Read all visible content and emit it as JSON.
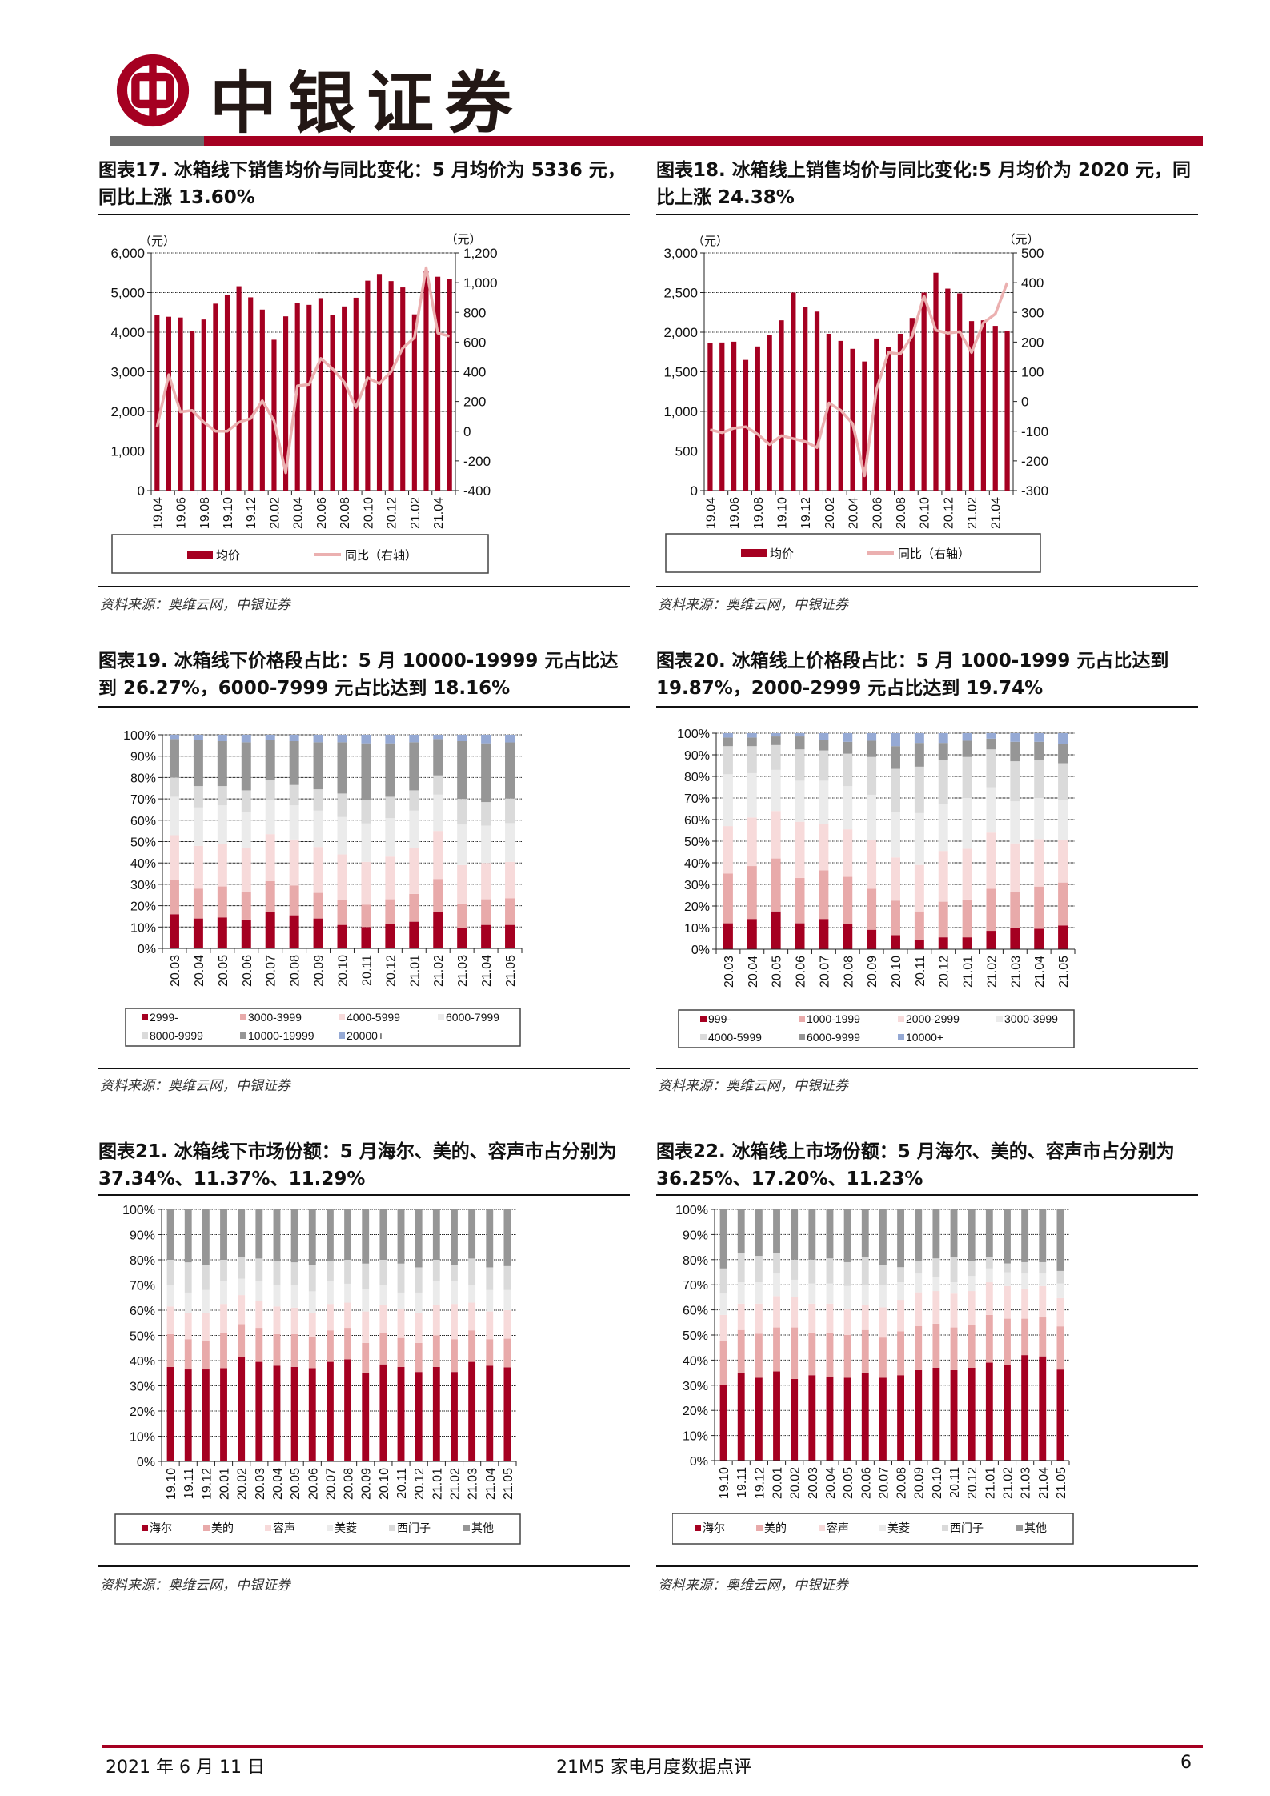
{
  "header": {
    "logo_text": "中银证券",
    "brand_color": "#A50021",
    "logo_icon": "bank-of-china-logo"
  },
  "sources": [
    "资料来源：奥维云网，中银证券",
    "资料来源：奥维云网，中银证券",
    "资料来源：奥维云网，中银证券",
    "资料来源：奥维云网，中银证券",
    "资料来源：奥维云网，中银证券",
    "资料来源：奥维云网，中银证券"
  ],
  "footer": {
    "date": "2021 年 6 月 11 日",
    "report_title": "21M5 家电月度数据点评",
    "page_number": "6"
  },
  "chart_data": [
    {
      "type": "bar+line",
      "title": "图表17. 冰箱线下销售均价与同比变化：5 月均价为 5336 元，同比上涨 13.60%",
      "y_unit_left": "（元）",
      "y_unit_right": "（元）",
      "categories": [
        "19.04",
        "19.05",
        "19.06",
        "19.07",
        "19.08",
        "19.09",
        "19.10",
        "19.11",
        "19.12",
        "20.01",
        "20.02",
        "20.03",
        "20.04",
        "20.05",
        "20.06",
        "20.07",
        "20.08",
        "20.09",
        "20.10",
        "20.11",
        "20.12",
        "21.01",
        "21.02",
        "21.03",
        "21.04",
        "21.05"
      ],
      "tick_labels": [
        "19.04",
        "19.06",
        "19.08",
        "19.10",
        "19.12",
        "20.02",
        "20.04",
        "20.06",
        "20.08",
        "20.10",
        "20.12",
        "21.02",
        "21.04"
      ],
      "ylim_left": [
        0,
        6000
      ],
      "yticks_left": [
        "0",
        "1,000",
        "2,000",
        "3,000",
        "4,000",
        "5,000",
        "6,000"
      ],
      "ylim_right": [
        -400,
        1200
      ],
      "yticks_right": [
        "-400",
        "-200",
        "0",
        "200",
        "400",
        "600",
        "800",
        "1,000",
        "1,200"
      ],
      "grid": true,
      "legend": "bottom",
      "series": [
        {
          "name": "均价",
          "kind": "bar",
          "axis": "left",
          "color": "#A50021",
          "values": [
            4430,
            4390,
            4370,
            4020,
            4320,
            4720,
            4950,
            5160,
            4880,
            4570,
            3810,
            4400,
            4740,
            4690,
            4860,
            4440,
            4650,
            4870,
            5300,
            5470,
            5290,
            5130,
            4450,
            5550,
            5400,
            5336
          ]
        },
        {
          "name": "同比（右轴）",
          "kind": "line",
          "axis": "right",
          "color": "#EBB0B0",
          "values": [
            30,
            380,
            130,
            140,
            60,
            0,
            0,
            60,
            85,
            205,
            70,
            -280,
            305,
            315,
            490,
            420,
            330,
            160,
            360,
            320,
            400,
            560,
            630,
            1100,
            660,
            640
          ]
        }
      ]
    },
    {
      "type": "bar+line",
      "title": "图表18. 冰箱线上销售均价与同比变化:5 月均价为 2020 元，同比上涨 24.38%",
      "y_unit_left": "（元）",
      "y_unit_right": "（元）",
      "categories": [
        "19.04",
        "19.05",
        "19.06",
        "19.07",
        "19.08",
        "19.09",
        "19.10",
        "19.11",
        "19.12",
        "20.01",
        "20.02",
        "20.03",
        "20.04",
        "20.05",
        "20.06",
        "20.07",
        "20.08",
        "20.09",
        "20.10",
        "20.11",
        "20.12",
        "21.01",
        "21.02",
        "21.03",
        "21.04",
        "21.05"
      ],
      "tick_labels": [
        "19.04",
        "19.06",
        "19.08",
        "19.10",
        "19.12",
        "20.02",
        "20.04",
        "20.06",
        "20.08",
        "20.10",
        "20.12",
        "21.02",
        "21.04"
      ],
      "ylim_left": [
        0,
        3000
      ],
      "yticks_left": [
        "0",
        "500",
        "1,000",
        "1,500",
        "2,000",
        "2,500",
        "3,000"
      ],
      "ylim_right": [
        -300,
        500
      ],
      "yticks_right": [
        "-300",
        "-200",
        "-100",
        "0",
        "100",
        "200",
        "300",
        "400",
        "500"
      ],
      "grid": true,
      "legend": "bottom",
      "series": [
        {
          "name": "均价",
          "kind": "bar",
          "axis": "left",
          "color": "#A50021",
          "values": [
            1860,
            1870,
            1880,
            1650,
            1820,
            1960,
            2150,
            2500,
            2320,
            2260,
            1980,
            1890,
            1790,
            1630,
            1920,
            1810,
            1980,
            2180,
            2500,
            2750,
            2550,
            2490,
            2140,
            2150,
            2080,
            2020
          ]
        },
        {
          "name": "同比（右轴）",
          "kind": "line",
          "axis": "right",
          "color": "#EBB0B0",
          "values": [
            -95,
            -105,
            -90,
            -85,
            -110,
            -145,
            -115,
            -125,
            -135,
            -155,
            -5,
            -30,
            -75,
            -250,
            40,
            165,
            160,
            220,
            355,
            240,
            230,
            235,
            165,
            265,
            295,
            400
          ]
        }
      ]
    },
    {
      "type": "stacked-bar",
      "title": "图表19. 冰箱线下价格段占比：5 月 10000-19999 元占比达到 26.27%，6000-7999 元占比达到 18.16%",
      "categories": [
        "20.03",
        "20.04",
        "20.05",
        "20.06",
        "20.07",
        "20.08",
        "20.09",
        "20.10",
        "20.11",
        "20.12",
        "21.01",
        "21.02",
        "21.03",
        "21.04",
        "21.05"
      ],
      "ylim": [
        0,
        100
      ],
      "yticks": [
        "0%",
        "10%",
        "20%",
        "30%",
        "40%",
        "50%",
        "60%",
        "70%",
        "80%",
        "90%",
        "100%"
      ],
      "unit": "%",
      "grid": true,
      "legend": "bottom",
      "series": [
        {
          "name": "2999-",
          "color": "#A50021",
          "values": [
            16,
            14,
            14.5,
            13.5,
            17,
            15.5,
            14,
            11,
            10,
            11.5,
            12.5,
            17,
            9.5,
            11,
            11
          ]
        },
        {
          "name": "3000-3999",
          "color": "#E8AAAA",
          "values": [
            16,
            14,
            14.5,
            13,
            14.5,
            14,
            12,
            11.5,
            10.5,
            11.5,
            13,
            15.5,
            11.5,
            12,
            12.5
          ]
        },
        {
          "name": "4000-5999",
          "color": "#F7DADA",
          "values": [
            21,
            20,
            20,
            20.5,
            22,
            21.5,
            21.5,
            21.5,
            20,
            20,
            21.5,
            22.5,
            18,
            17,
            17
          ]
        },
        {
          "name": "6000-7999",
          "color": "#EBEBEB",
          "values": [
            18,
            18,
            18,
            17,
            16,
            16,
            17,
            17.5,
            18,
            18,
            17.5,
            17,
            19,
            17.5,
            18.16
          ]
        },
        {
          "name": "8000-9999",
          "color": "#DADADA",
          "values": [
            9,
            10,
            9,
            10,
            9.5,
            9.5,
            10,
            11,
            11,
            10,
            9.5,
            9,
            12,
            11,
            11.5
          ]
        },
        {
          "name": "10000-19999",
          "color": "#969696",
          "values": [
            18,
            21.5,
            21,
            22.5,
            18.5,
            20.5,
            22,
            24,
            26.5,
            25,
            22.5,
            17,
            27,
            27.5,
            26.27
          ]
        },
        {
          "name": "20000+",
          "color": "#95A9D4",
          "values": [
            2,
            2.5,
            3,
            3.5,
            2.5,
            3,
            3.5,
            3.5,
            4,
            4,
            3.5,
            2,
            3,
            4,
            3.57
          ]
        }
      ]
    },
    {
      "type": "stacked-bar",
      "title": "图表20. 冰箱线上价格段占比：5 月 1000-1999 元占比达到 19.87%，2000-2999 元占比达到 19.74%",
      "categories": [
        "20.03",
        "20.04",
        "20.05",
        "20.06",
        "20.07",
        "20.08",
        "20.09",
        "20.10",
        "20.11",
        "20.12",
        "21.01",
        "21.02",
        "21.03",
        "21.04",
        "21.05"
      ],
      "ylim": [
        0,
        100
      ],
      "yticks": [
        "0%",
        "10%",
        "20%",
        "30%",
        "40%",
        "50%",
        "60%",
        "70%",
        "80%",
        "90%",
        "100%"
      ],
      "unit": "%",
      "grid": true,
      "legend": "bottom",
      "series": [
        {
          "name": "999-",
          "color": "#A50021",
          "values": [
            12,
            14,
            17.5,
            12,
            14,
            11.5,
            9,
            6.5,
            4.5,
            5.5,
            5.5,
            8.5,
            10,
            9.5,
            11
          ]
        },
        {
          "name": "1000-1999",
          "color": "#E8AAAA",
          "values": [
            23,
            24.5,
            24.5,
            21,
            22.5,
            22,
            19,
            16,
            13,
            16.5,
            17.5,
            19.5,
            16.5,
            19.5,
            19.87
          ]
        },
        {
          "name": "2000-2999",
          "color": "#F7DADA",
          "values": [
            22,
            22.5,
            22,
            26,
            21.5,
            22,
            22.5,
            20,
            21.5,
            23.5,
            23.5,
            26,
            22.5,
            22,
            19.74
          ]
        },
        {
          "name": "3000-3999",
          "color": "#EBEBEB",
          "values": [
            24,
            20.5,
            19,
            19,
            20,
            20,
            21,
            21,
            24,
            21.5,
            23.5,
            21,
            19.5,
            19,
            18.5
          ]
        },
        {
          "name": "4000-5999",
          "color": "#DADADA",
          "values": [
            13,
            12.5,
            11.5,
            14.5,
            14,
            15,
            17.5,
            20,
            21.5,
            20.5,
            19,
            17.5,
            18.5,
            17.5,
            17
          ]
        },
        {
          "name": "6000-9999",
          "color": "#969696",
          "values": [
            4,
            4,
            4,
            6,
            5,
            5.5,
            7.5,
            10.5,
            11,
            8,
            7.5,
            5,
            9,
            8.5,
            9
          ]
        },
        {
          "name": "10000+",
          "color": "#95A9D4",
          "values": [
            2,
            2,
            1.5,
            1.5,
            3,
            4,
            3.5,
            6,
            4.5,
            4.5,
            3.5,
            2.5,
            4,
            4,
            4.89
          ]
        }
      ]
    },
    {
      "type": "stacked-bar",
      "title": "图表21. 冰箱线下市场份额：5 月海尔、美的、容声市占分别为 37.34%、11.37%、11.29%",
      "categories": [
        "19.10",
        "19.11",
        "19.12",
        "20.01",
        "20.02",
        "20.03",
        "20.04",
        "20.05",
        "20.06",
        "20.07",
        "20.08",
        "20.09",
        "20.10",
        "20.11",
        "20.12",
        "21.01",
        "21.02",
        "21.03",
        "21.04",
        "21.05"
      ],
      "ylim": [
        0,
        100
      ],
      "yticks": [
        "0%",
        "10%",
        "20%",
        "30%",
        "40%",
        "50%",
        "60%",
        "70%",
        "80%",
        "90%",
        "100%"
      ],
      "unit": "%",
      "grid": true,
      "legend": "bottom",
      "series": [
        {
          "name": "海尔",
          "color": "#A50021",
          "values": [
            37.5,
            36.5,
            36.5,
            37,
            41.5,
            39.5,
            38,
            37.5,
            37,
            39.5,
            40.5,
            35,
            38.5,
            37.5,
            35.5,
            37.5,
            35.5,
            39.5,
            38,
            37.34
          ]
        },
        {
          "name": "美的",
          "color": "#E8AAAA",
          "values": [
            13,
            12,
            11.5,
            14,
            13,
            13.5,
            12.5,
            13,
            12.5,
            12.5,
            12.5,
            12,
            12.5,
            11.5,
            11.5,
            12.5,
            13,
            12.5,
            10.5,
            11.37
          ]
        },
        {
          "name": "容声",
          "color": "#F7DADA",
          "values": [
            11,
            10.5,
            11,
            11.5,
            11.5,
            10.5,
            11,
            10.5,
            9.5,
            10.5,
            10,
            12.5,
            11,
            11.5,
            12,
            12,
            14,
            11,
            11,
            11.29
          ]
        },
        {
          "name": "美菱",
          "color": "#EBEBEB",
          "values": [
            8.5,
            8,
            9,
            9,
            6.5,
            8,
            8.5,
            9,
            8.5,
            9,
            7.5,
            9,
            8,
            6.5,
            8,
            9.5,
            9,
            7,
            8.5,
            8
          ]
        },
        {
          "name": "西门子",
          "color": "#DADADA",
          "values": [
            10,
            12,
            10,
            8.5,
            8.5,
            9,
            9.5,
            9,
            10.5,
            8,
            9.5,
            10,
            10,
            11.5,
            10,
            8.5,
            6.5,
            10.5,
            9,
            9.5
          ]
        },
        {
          "name": "其他",
          "color": "#969696",
          "values": [
            20,
            21,
            22,
            20,
            19,
            19.5,
            20.5,
            21,
            22,
            20.5,
            20,
            21.5,
            20,
            21.5,
            23,
            20,
            22,
            19.5,
            23,
            22.5
          ]
        }
      ]
    },
    {
      "type": "stacked-bar",
      "title": "图表22. 冰箱线上市场份额：5 月海尔、美的、容声市占分别为 36.25%、17.20%、11.23%",
      "categories": [
        "19.10",
        "19.11",
        "19.12",
        "20.01",
        "20.02",
        "20.03",
        "20.04",
        "20.05",
        "20.06",
        "20.07",
        "20.08",
        "20.09",
        "20.10",
        "20.11",
        "20.12",
        "21.01",
        "21.02",
        "21.03",
        "21.04",
        "21.05"
      ],
      "ylim": [
        0,
        100
      ],
      "yticks": [
        "0%",
        "10%",
        "20%",
        "30%",
        "40%",
        "50%",
        "60%",
        "70%",
        "80%",
        "90%",
        "100%"
      ],
      "unit": "%",
      "grid": true,
      "legend": "bottom",
      "series": [
        {
          "name": "海尔",
          "color": "#A50021",
          "values": [
            30,
            35,
            33,
            35.5,
            32.5,
            34,
            33.5,
            33,
            35,
            33,
            34,
            36,
            37,
            36,
            37,
            39,
            38,
            42,
            41.5,
            36.25
          ]
        },
        {
          "name": "美的",
          "color": "#E8AAAA",
          "values": [
            17.5,
            17,
            17.5,
            17.5,
            20.5,
            17,
            17.5,
            17,
            17,
            16,
            17.5,
            17.5,
            17.5,
            17,
            17,
            19,
            18.5,
            14.5,
            15.5,
            17.2
          ]
        },
        {
          "name": "容声",
          "color": "#F7DADA",
          "values": [
            10.5,
            10.5,
            12,
            12.5,
            12,
            11.5,
            11.5,
            10.5,
            10,
            12,
            12.5,
            13.5,
            13,
            13.5,
            13.5,
            13,
            13,
            12,
            12.5,
            11.23
          ]
        },
        {
          "name": "美菱",
          "color": "#EBEBEB",
          "values": [
            8.5,
            8.5,
            8.5,
            9,
            7,
            8,
            8,
            9,
            8,
            9,
            7,
            7.5,
            5.5,
            4.5,
            6,
            5.5,
            5.5,
            6,
            5,
            5.82
          ]
        },
        {
          "name": "西门子",
          "color": "#DADADA",
          "values": [
            10,
            11.5,
            10.5,
            8,
            8,
            9.5,
            10,
            9.5,
            11,
            8,
            6,
            5,
            7.5,
            10,
            6,
            4.5,
            3.5,
            4.5,
            4.5,
            5
          ]
        },
        {
          "name": "其他",
          "color": "#969696",
          "values": [
            23.5,
            17.5,
            18.5,
            17.5,
            20,
            20,
            19.5,
            21,
            19,
            22,
            23,
            20.5,
            19.5,
            19,
            20.5,
            19,
            21.5,
            21,
            21,
            24.5
          ]
        }
      ]
    }
  ]
}
